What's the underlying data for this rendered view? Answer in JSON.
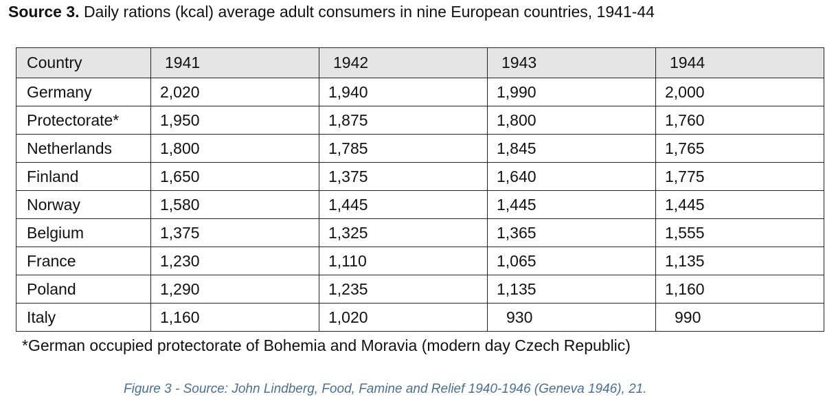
{
  "title": {
    "label": "Source 3.",
    "text": "Daily rations (kcal) average adult consumers in nine European countries, 1941-44"
  },
  "table": {
    "columns": [
      "Country",
      "1941",
      "1942",
      "1943",
      "1944"
    ],
    "rows": [
      [
        "Germany",
        "2,020",
        "1,940",
        "1,990",
        "2,000"
      ],
      [
        "Protectorate*",
        "1,950",
        "1,875",
        "1,800",
        "1,760"
      ],
      [
        "Netherlands",
        "1,800",
        "1,785",
        "1,845",
        "1,765"
      ],
      [
        "Finland",
        "1,650",
        "1,375",
        "1,640",
        "1,775"
      ],
      [
        "Norway",
        "1,580",
        "1,445",
        "1,445",
        "1,445"
      ],
      [
        "Belgium",
        "1,375",
        "1,325",
        "1,365",
        "1,555"
      ],
      [
        "France",
        "1,230",
        "1,110",
        "1,065",
        "1,135"
      ],
      [
        "Poland",
        "1,290",
        "1,235",
        "1,135",
        "1,160"
      ],
      [
        "Italy",
        "1,160",
        "1,020",
        "930",
        "990"
      ]
    ]
  },
  "footnote": "*German occupied protectorate of Bohemia and Moravia (modern day Czech Republic)",
  "caption": "Figure 3 - Source: John Lindberg, Food, Famine and Relief 1940-1946 (Geneva 1946), 21."
}
